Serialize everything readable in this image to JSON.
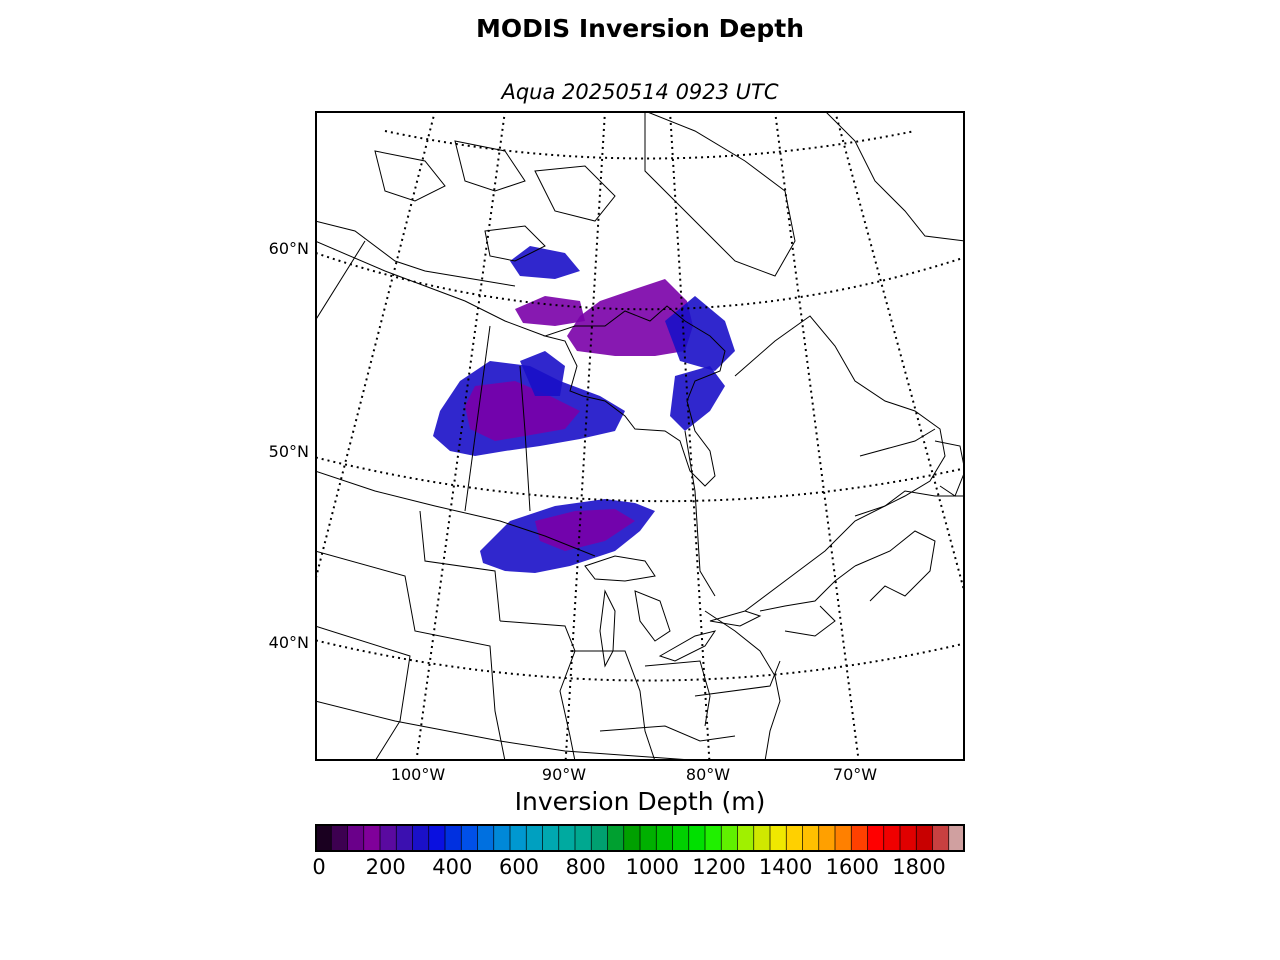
{
  "title": "MODIS Inversion Depth",
  "subtitle": "Aqua 20250514 0923 UTC",
  "latitude_labels": [
    "60°N",
    "50°N",
    "40°N"
  ],
  "longitude_labels": [
    "100°W",
    "90°W",
    "80°W",
    "70°W"
  ],
  "colorbar": {
    "label": "Inversion Depth (m)",
    "tick_labels": [
      "0",
      "200",
      "400",
      "600",
      "800",
      "1000",
      "1200",
      "1400",
      "1600",
      "1800"
    ],
    "min": 0,
    "max": 1950,
    "step": 50,
    "colors": [
      "#1a0020",
      "#3d0050",
      "#6a008a",
      "#80009a",
      "#5a0aa0",
      "#3b10b0",
      "#1a10c8",
      "#0a10e0",
      "#0030e0",
      "#0050e8",
      "#0070e0",
      "#0088d8",
      "#0098d0",
      "#00a0c0",
      "#00a8b0",
      "#00aaa0",
      "#00a890",
      "#00a070",
      "#00a030",
      "#00a000",
      "#00b000",
      "#00c000",
      "#00d000",
      "#00e000",
      "#20f000",
      "#60f000",
      "#a0f000",
      "#d0e800",
      "#f0e800",
      "#ffd000",
      "#ffc000",
      "#ffa000",
      "#ff8000",
      "#ff4000",
      "#ff0000",
      "#f00000",
      "#e00000",
      "#c80000",
      "#c84040",
      "#d0a0a0"
    ]
  },
  "map_colors": {
    "low_depth": "#7a00a8",
    "mid_depth": "#1a10c8",
    "high_depth": "#0050e8"
  }
}
